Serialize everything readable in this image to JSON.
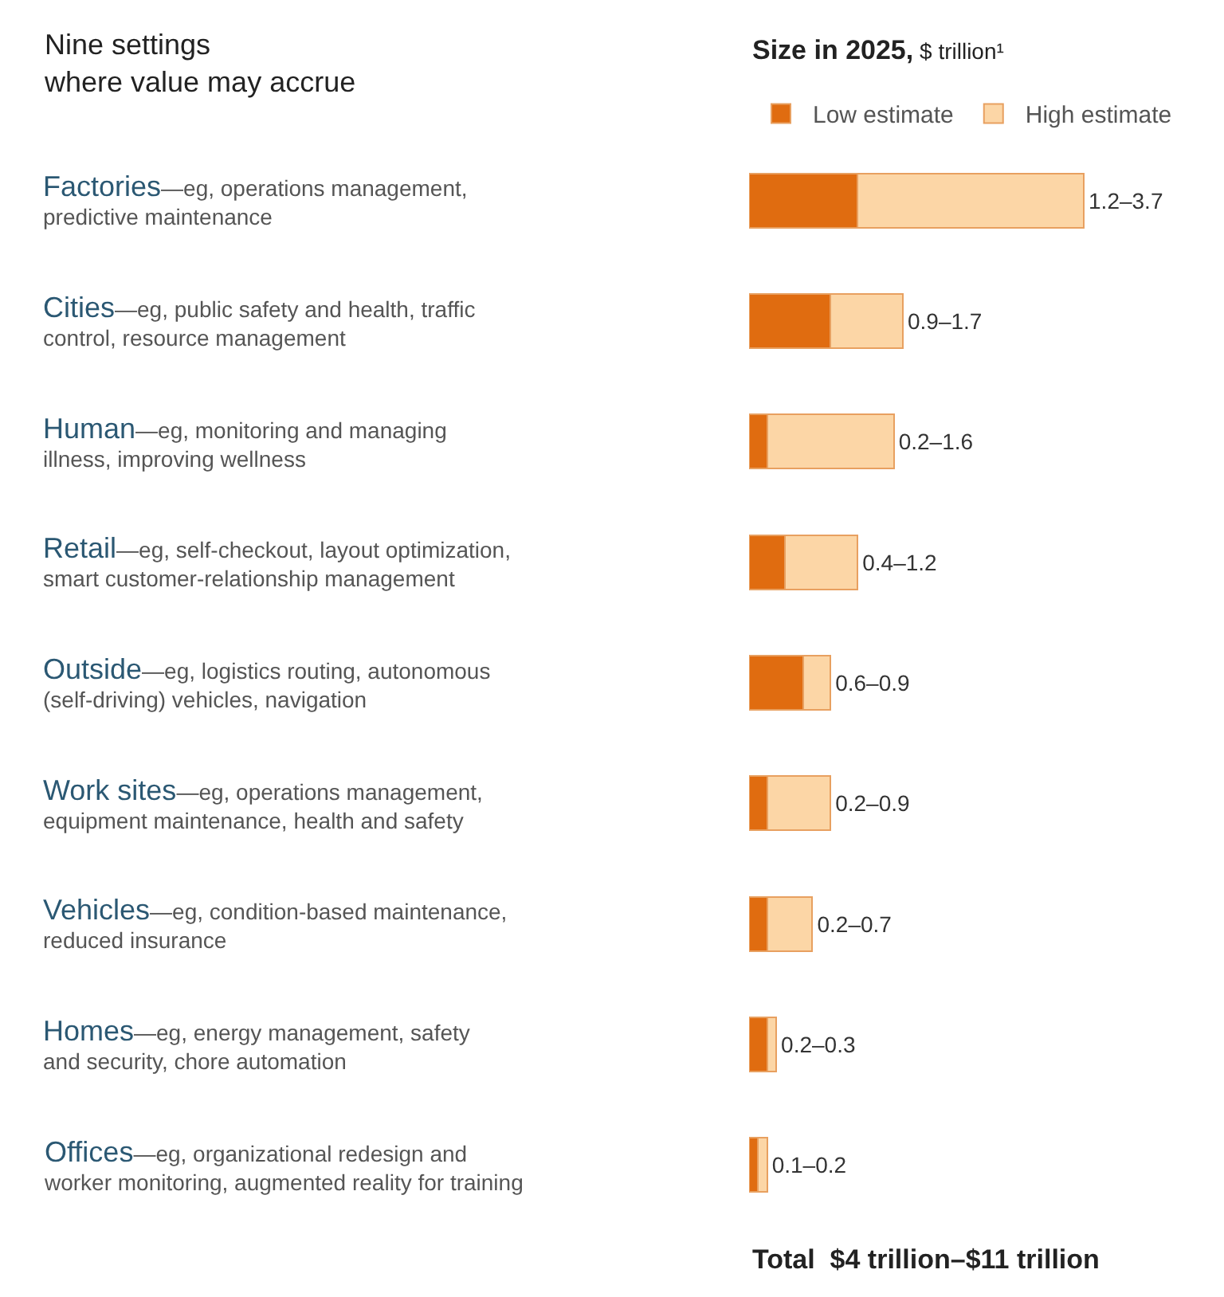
{
  "chart_data": {
    "type": "bar",
    "orientation": "horizontal",
    "stacked": true,
    "title": "Nine settings\nwhere value may accrue",
    "subtitle": "Size in 2025, $ trillion¹",
    "categories": [
      "Factories—eg, operations management,\npredictive maintenance",
      "Cities—eg, public safety and health, traffic\ncontrol, resource management",
      "Human—eg, monitoring and managing\nillness, improving wellness",
      "Retail—eg, self-checkout, layout optimization,\nsmart customer-relationship management",
      "Outside—eg, logistics routing, autonomous\n(self-driving) vehicles, navigation",
      "Work sites—eg, operations management,\nequipment maintenance, health and safety",
      "Vehicles—eg, condition-based maintenance,\nreduced insurance",
      "Homes—eg, energy management, safety\nand security, chore automation",
      "Offices—eg, organizational redesign and\nworker monitoring, augmented reality for training"
    ],
    "series": [
      {
        "name": "Low estimate",
        "color": "#e06c10",
        "values": [
          1.2,
          0.9,
          0.2,
          0.4,
          0.6,
          0.2,
          0.2,
          0.2,
          0.1
        ]
      },
      {
        "name": "High estimate",
        "color": "#fcd6a6",
        "values": [
          2.5,
          0.8,
          1.4,
          0.8,
          0.3,
          0.7,
          0.5,
          0.1,
          0.1
        ],
        "value_labels": [
          "1.2–3.7",
          "0.9–1.7",
          "0.2–1.6",
          "0.4–1.2",
          "0.6–0.9",
          "0.2–0.9",
          "0.2–0.7",
          "0.2–0.3",
          "0.1–0.2"
        ]
      }
    ],
    "xlim": [
      0,
      5.25
    ],
    "tick_labels": false,
    "legend": "top right",
    "annotations": [
      "Total  $4 trillion–$11 trillion"
    ]
  }
}
